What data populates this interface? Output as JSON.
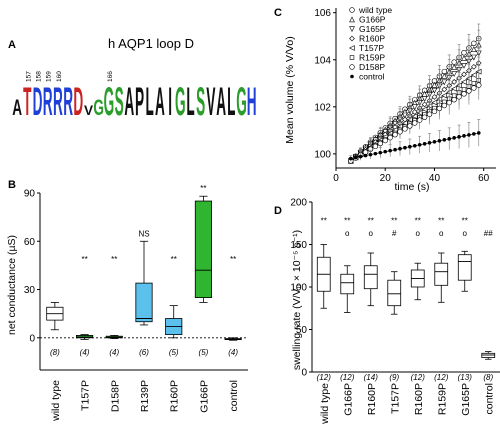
{
  "panels": {
    "A": {
      "letter": "A",
      "title": "h AQP1 loop D",
      "logo": [
        {
          "char": "A",
          "color": "#111111",
          "h": 0.55
        },
        {
          "char": "T",
          "color": "#cc2222",
          "h": 1.0
        },
        {
          "char": "D",
          "color": "#1f3fd6",
          "h": 1.0
        },
        {
          "char": "R",
          "color": "#1f3fd6",
          "h": 1.0
        },
        {
          "char": "R",
          "color": "#1f3fd6",
          "h": 1.0
        },
        {
          "char": "R",
          "color": "#1f3fd6",
          "h": 1.0
        },
        {
          "char": "D",
          "color": "#cc2222",
          "h": 1.0
        },
        {
          "char": "V",
          "color": "#111111",
          "h": 0.35
        },
        {
          "char": "G",
          "color": "#2a9d2a",
          "h": 0.55
        },
        {
          "char": "G",
          "color": "#2a9d2a",
          "h": 1.0
        },
        {
          "char": "S",
          "color": "#2a9d2a",
          "h": 1.0
        },
        {
          "char": "A",
          "color": "#111111",
          "h": 1.0
        },
        {
          "char": "P",
          "color": "#111111",
          "h": 1.0
        },
        {
          "char": "L",
          "color": "#111111",
          "h": 1.0
        },
        {
          "char": "A",
          "color": "#111111",
          "h": 1.0
        },
        {
          "char": "I",
          "color": "#111111",
          "h": 1.0
        },
        {
          "char": "G",
          "color": "#2a9d2a",
          "h": 1.0
        },
        {
          "char": "L",
          "color": "#111111",
          "h": 1.0
        },
        {
          "char": "S",
          "color": "#2a9d2a",
          "h": 1.0
        },
        {
          "char": "V",
          "color": "#111111",
          "h": 1.0
        },
        {
          "char": "A",
          "color": "#111111",
          "h": 1.0
        },
        {
          "char": "L",
          "color": "#111111",
          "h": 1.0
        },
        {
          "char": "G",
          "color": "#2a9d2a",
          "h": 1.0
        },
        {
          "char": "H",
          "color": "#1f3fd6",
          "h": 1.0
        }
      ],
      "position_labels": [
        "157",
        "158",
        "159",
        "160",
        "166"
      ]
    },
    "B": {
      "letter": "B",
      "chart_data": {
        "type": "box",
        "ylabel": "net conductance (µS)",
        "ylim": [
          -20,
          90
        ],
        "yticks": [
          0,
          30,
          60,
          90
        ],
        "categories": [
          "wild type",
          "T157P",
          "D158P",
          "R139P",
          "R160P",
          "G166P",
          "control"
        ],
        "n": [
          "(8)",
          "(4)",
          "(4)",
          "(6)",
          "(5)",
          "(5)",
          "(4)"
        ],
        "significance": [
          "",
          "**",
          "**",
          "NS",
          "**",
          "**",
          "**"
        ],
        "colors": [
          "#ffffff",
          "#2fb52f",
          "#2fb52f",
          "#5bc0eb",
          "#5bc0eb",
          "#2fb52f",
          "#ffffff"
        ],
        "boxes": [
          {
            "min": 5,
            "q1": 11,
            "median": 15,
            "q3": 19,
            "max": 22
          },
          {
            "min": -1,
            "q1": 0,
            "median": 0.5,
            "q3": 1.5,
            "max": 2
          },
          {
            "min": -0.5,
            "q1": 0,
            "median": 0.3,
            "q3": 1,
            "max": 1.5
          },
          {
            "min": 8,
            "q1": 10,
            "median": 12,
            "q3": 34,
            "max": 60
          },
          {
            "min": 0,
            "q1": 2,
            "median": 7,
            "q3": 12,
            "max": 20
          },
          {
            "min": 22,
            "q1": 25,
            "median": 42,
            "q3": 85,
            "max": 88
          },
          {
            "min": -1.5,
            "q1": -1,
            "median": -0.8,
            "q3": -0.5,
            "max": 0
          }
        ]
      }
    },
    "C": {
      "letter": "C",
      "chart_data": {
        "type": "scatter",
        "xlabel": "time (s)",
        "ylabel": "Mean volume (% V/Vo)",
        "xlim": [
          0,
          65
        ],
        "ylim": [
          99.4,
          106.2
        ],
        "xticks": [
          0,
          20,
          40,
          60
        ],
        "yticks": [
          100,
          102,
          104,
          106
        ],
        "x": [
          6,
          8,
          10,
          12,
          14,
          16,
          18,
          20,
          22,
          24,
          26,
          28,
          30,
          32,
          34,
          36,
          38,
          40,
          42,
          44,
          46,
          48,
          50,
          52,
          54,
          56,
          58
        ],
        "series": [
          {
            "name": "wild type",
            "marker": "circle",
            "slope": 0.1,
            "start": 99.7
          },
          {
            "name": "G166P",
            "marker": "triangle",
            "slope": 0.095,
            "start": 99.7
          },
          {
            "name": "G165P",
            "marker": "triangle-down",
            "slope": 0.088,
            "start": 99.7
          },
          {
            "name": "R160P",
            "marker": "diamond",
            "slope": 0.08,
            "start": 99.7
          },
          {
            "name": "T157P",
            "marker": "triangle-left",
            "slope": 0.073,
            "start": 99.7
          },
          {
            "name": "R159P",
            "marker": "square",
            "slope": 0.066,
            "start": 99.7
          },
          {
            "name": "D158P",
            "marker": "circle-plus",
            "slope": 0.062,
            "start": 99.7
          },
          {
            "name": "control",
            "marker": "filled-circle",
            "slope": 0.021,
            "start": 99.8
          }
        ]
      }
    },
    "D": {
      "letter": "D",
      "chart_data": {
        "type": "box",
        "ylabel": "swelling rate (V/V₀ × 10⁻⁵ s⁻¹)",
        "ylim": [
          0,
          200
        ],
        "yticks": [
          0,
          50,
          100,
          150,
          200
        ],
        "categories": [
          "wild type",
          "G166P",
          "R160P",
          "T157P",
          "R160P",
          "R159P",
          "G165P",
          "control"
        ],
        "n": [
          "(12)",
          "(12)",
          "(14)",
          "(9)",
          "(12)",
          "(12)",
          "(13)",
          "(8)"
        ],
        "significance_top": [
          "**",
          "**",
          "**",
          "**",
          "**",
          "**",
          "**",
          ""
        ],
        "significance_bottom": [
          "",
          "o",
          "o",
          "#",
          "o",
          "o",
          "o",
          "##"
        ],
        "boxes": [
          {
            "min": 75,
            "q1": 95,
            "median": 115,
            "q3": 135,
            "max": 150
          },
          {
            "min": 70,
            "q1": 92,
            "median": 105,
            "q3": 115,
            "max": 125
          },
          {
            "min": 78,
            "q1": 98,
            "median": 115,
            "q3": 125,
            "max": 140
          },
          {
            "min": 68,
            "q1": 78,
            "median": 92,
            "q3": 108,
            "max": 118
          },
          {
            "min": 85,
            "q1": 100,
            "median": 110,
            "q3": 120,
            "max": 128
          },
          {
            "min": 82,
            "q1": 102,
            "median": 118,
            "q3": 128,
            "max": 140
          },
          {
            "min": 95,
            "q1": 108,
            "median": 130,
            "q3": 138,
            "max": 142
          },
          {
            "min": 15,
            "q1": 17,
            "median": 20,
            "q3": 22,
            "max": 24
          }
        ]
      }
    }
  }
}
